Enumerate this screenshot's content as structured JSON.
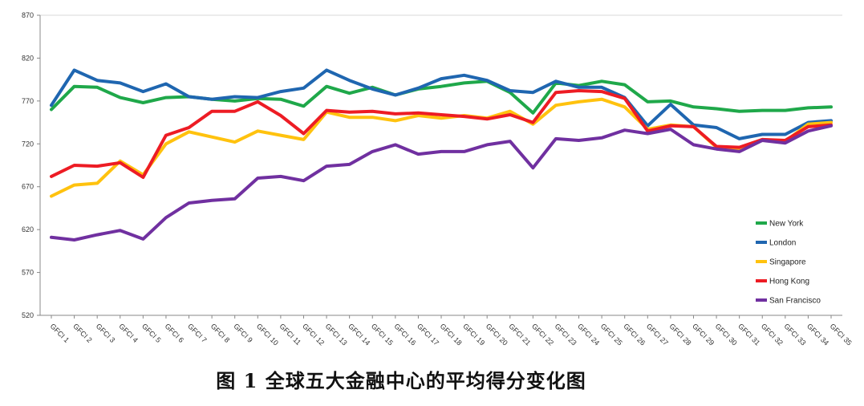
{
  "caption": "图 1  全球五大金融中心的平均得分变化图",
  "chart_data": {
    "type": "line",
    "title": "",
    "xlabel": "",
    "ylabel": "",
    "ylim": [
      520,
      870
    ],
    "yticks": [
      520,
      570,
      620,
      670,
      720,
      770,
      820,
      870
    ],
    "grid": "top border only",
    "legend_position": "right",
    "categories": [
      "GFCI 1",
      "GFCI 2",
      "GFCI 3",
      "GFCI 4",
      "GFCI 5",
      "GFCI 6",
      "GFCI 7",
      "GFCI 8",
      "GFCI 9",
      "GFCI 10",
      "GFCI 11",
      "GFCI 12",
      "GFCI 13",
      "GFCI 14",
      "GFCI 15",
      "GFCI 16",
      "GFCI 17",
      "GFCI 18",
      "GFCI 19",
      "GFCI 20",
      "GFCI 21",
      "GFCI 22",
      "GFCI 23",
      "GFCI 24",
      "GFCI 25",
      "GFCI 26",
      "GFCI 27",
      "GFCI 28",
      "GFCI 29",
      "GFCI 30",
      "GFCI 31",
      "GFCI 32",
      "GFCI 33",
      "GFCI 34",
      "GFCI 35"
    ],
    "series": [
      {
        "name": "New York",
        "color": "#1fa84a",
        "values": [
          760,
          787,
          786,
          774,
          768,
          774,
          775,
          772,
          770,
          773,
          772,
          764,
          787,
          779,
          786,
          777,
          784,
          787,
          791,
          793,
          780,
          756,
          791,
          788,
          793,
          789,
          769,
          770,
          763,
          761,
          758,
          759,
          759,
          762,
          763
        ]
      },
      {
        "name": "London",
        "color": "#1f66b0",
        "values": [
          765,
          806,
          794,
          791,
          781,
          790,
          775,
          772,
          775,
          774,
          781,
          785,
          806,
          794,
          784,
          777,
          785,
          796,
          800,
          794,
          782,
          780,
          793,
          786,
          786,
          774,
          741,
          766,
          742,
          739,
          726,
          731,
          731,
          745,
          747
        ]
      },
      {
        "name": "Singapore",
        "color": "#ffc20e",
        "values": [
          659,
          672,
          674,
          700,
          684,
          720,
          734,
          728,
          722,
          735,
          730,
          725,
          757,
          751,
          751,
          747,
          753,
          750,
          753,
          750,
          758,
          743,
          765,
          769,
          772,
          763,
          737,
          742,
          740,
          716,
          713,
          725,
          723,
          743,
          745
        ]
      },
      {
        "name": "Hong Kong",
        "color": "#ed1c24",
        "values": [
          682,
          695,
          694,
          698,
          681,
          730,
          739,
          758,
          758,
          769,
          753,
          732,
          759,
          757,
          758,
          755,
          756,
          754,
          752,
          749,
          754,
          745,
          780,
          782,
          781,
          773,
          735,
          741,
          740,
          717,
          716,
          725,
          724,
          740,
          742
        ]
      },
      {
        "name": "San Francisco",
        "color": "#7030a0",
        "values": [
          611,
          608,
          614,
          619,
          609,
          634,
          651,
          654,
          656,
          680,
          682,
          677,
          694,
          696,
          711,
          719,
          708,
          711,
          711,
          719,
          723,
          692,
          726,
          724,
          727,
          736,
          732,
          737,
          719,
          714,
          711,
          724,
          721,
          735,
          741
        ]
      }
    ]
  }
}
